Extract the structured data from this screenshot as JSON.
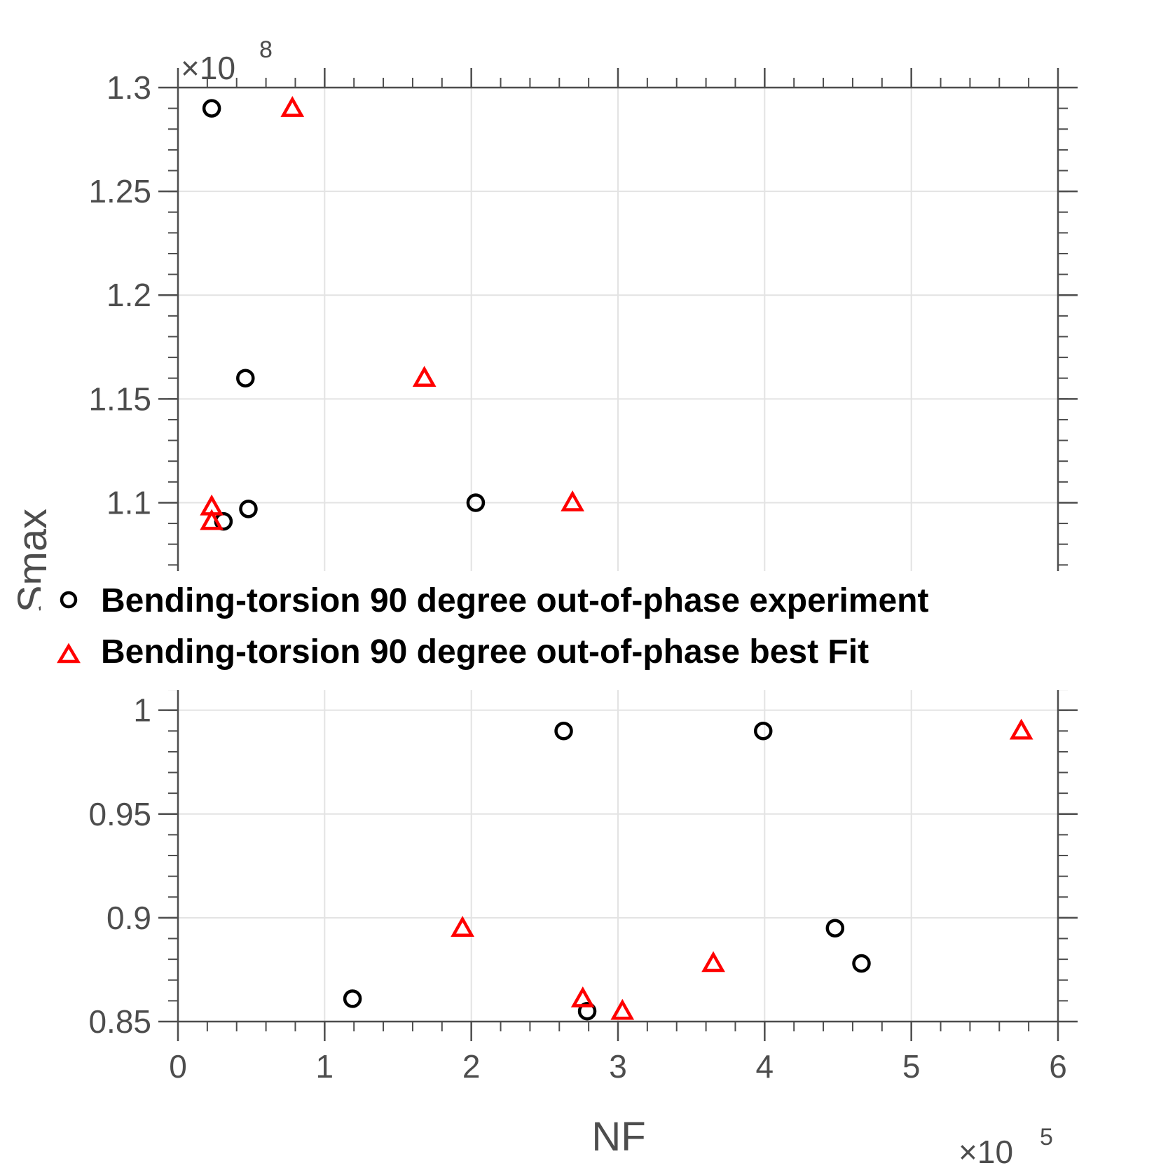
{
  "chart_data": {
    "type": "scatter",
    "xlabel": "NF",
    "ylabel": "Smax",
    "x_exponent_label": "×10",
    "x_exponent_power": "5",
    "y_exponent_label": "×10",
    "y_exponent_power": "8",
    "xlim": [
      0,
      600000
    ],
    "ylim": [
      0.85,
      1.3
    ],
    "xscale": 100000,
    "yscale": 100000000,
    "x_ticks": [
      0,
      100000,
      200000,
      300000,
      400000,
      500000,
      600000
    ],
    "x_tick_labels": [
      "0",
      "1",
      "2",
      "3",
      "4",
      "5",
      "6"
    ],
    "y_ticks": [
      0.85,
      0.9,
      0.95,
      1.0,
      1.05,
      1.1,
      1.15,
      1.2,
      1.25,
      1.3
    ],
    "y_tick_labels": [
      "0.85",
      "0.9",
      "0.95",
      "1",
      "",
      "1.1",
      "1.15",
      "1.2",
      "1.25",
      "1.3"
    ],
    "grid": true,
    "legend_position": "center",
    "series": [
      {
        "name": "Bending-torsion 90 degree out-of-phase experiment",
        "marker": "circle",
        "color": "#000000",
        "points": [
          [
            23000,
            1.29
          ],
          [
            46000,
            1.16
          ],
          [
            48000,
            1.097
          ],
          [
            31000,
            1.091
          ],
          [
            203000,
            1.1
          ],
          [
            119000,
            0.861
          ],
          [
            263000,
            0.99
          ],
          [
            279000,
            0.855
          ],
          [
            399000,
            0.99
          ],
          [
            448000,
            0.895
          ],
          [
            466000,
            0.878
          ]
        ]
      },
      {
        "name": "Bending-torsion 90 degree out-of-phase best Fit",
        "marker": "triangle",
        "color": "#ff0000",
        "points": [
          [
            78000,
            1.29
          ],
          [
            168000,
            1.16
          ],
          [
            269000,
            1.1
          ],
          [
            23000,
            1.098
          ],
          [
            23000,
            1.091
          ],
          [
            194000,
            0.895
          ],
          [
            276000,
            0.861
          ],
          [
            303000,
            0.855
          ],
          [
            365000,
            0.878
          ],
          [
            575000,
            0.99
          ]
        ]
      }
    ]
  }
}
